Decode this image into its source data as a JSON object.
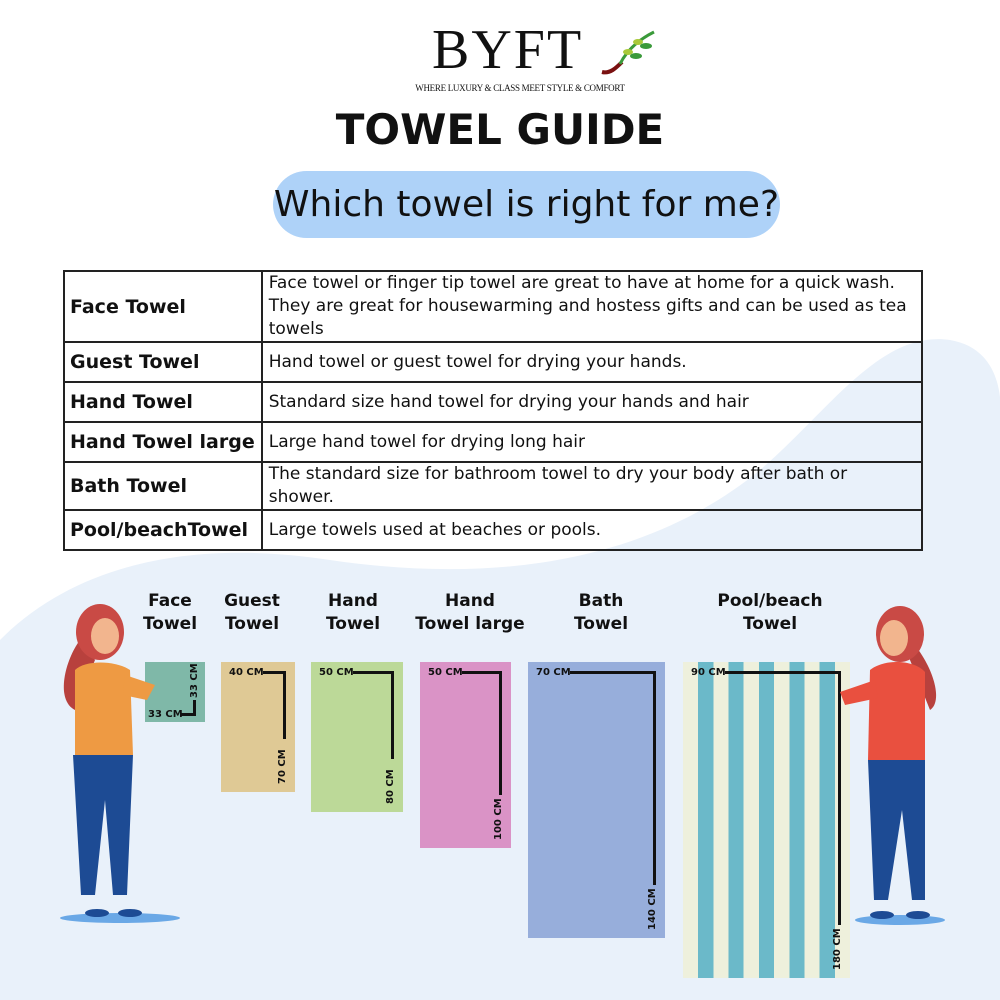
{
  "brand": {
    "name": "BYFT",
    "tagline": "WHERE LUXURY & CLASS MEET STYLE & COMFORT"
  },
  "title": "TOWEL GUIDE",
  "subtitle": "Which towel is right for me?",
  "table": [
    {
      "name": "Face Towel",
      "desc": [
        "Face towel or finger tip towel are great to have at home for a quick wash.",
        "They are great for housewarming and hostess gifts and can be used as tea towels"
      ]
    },
    {
      "name": "Guest Towel",
      "desc": [
        "Hand towel or guest towel for drying your hands."
      ]
    },
    {
      "name": "Hand Towel",
      "desc": [
        "Standard size hand towel for drying your hands and hair"
      ]
    },
    {
      "name": "Hand Towel large",
      "desc": [
        "Large hand towel for drying long hair"
      ]
    },
    {
      "name": "Bath Towel",
      "desc": [
        "The standard size for bathroom towel to dry your body after bath or shower."
      ]
    },
    {
      "name": "Pool/beachTowel",
      "desc": [
        "Large towels used at beaches or pools."
      ]
    }
  ],
  "towels": [
    {
      "label": [
        "Face",
        "Towel"
      ],
      "width": "33 CM",
      "height": "33 CM",
      "color": "#7fb8a8"
    },
    {
      "label": [
        "Guest",
        "Towel"
      ],
      "width": "40 CM",
      "height": "70 CM",
      "color": "#dfc995"
    },
    {
      "label": [
        "Hand",
        "Towel"
      ],
      "width": "50 CM",
      "height": "80 CM",
      "color": "#bcd998"
    },
    {
      "label": [
        "Hand",
        "Towel large"
      ],
      "width": "50 CM",
      "height": "100 CM",
      "color": "#da93c6"
    },
    {
      "label": [
        "Bath",
        "Towel"
      ],
      "width": "70 CM",
      "height": "140 CM",
      "color": "#97aedb"
    },
    {
      "label": [
        "Pool/beach",
        "Towel"
      ],
      "width": "90 CM",
      "height": "180 CM",
      "color": "#6bb9c9",
      "stripe_color": "#eef0dc"
    }
  ],
  "colors": {
    "pill": "#aed2f8",
    "background_shape": "#e9f1fa"
  }
}
